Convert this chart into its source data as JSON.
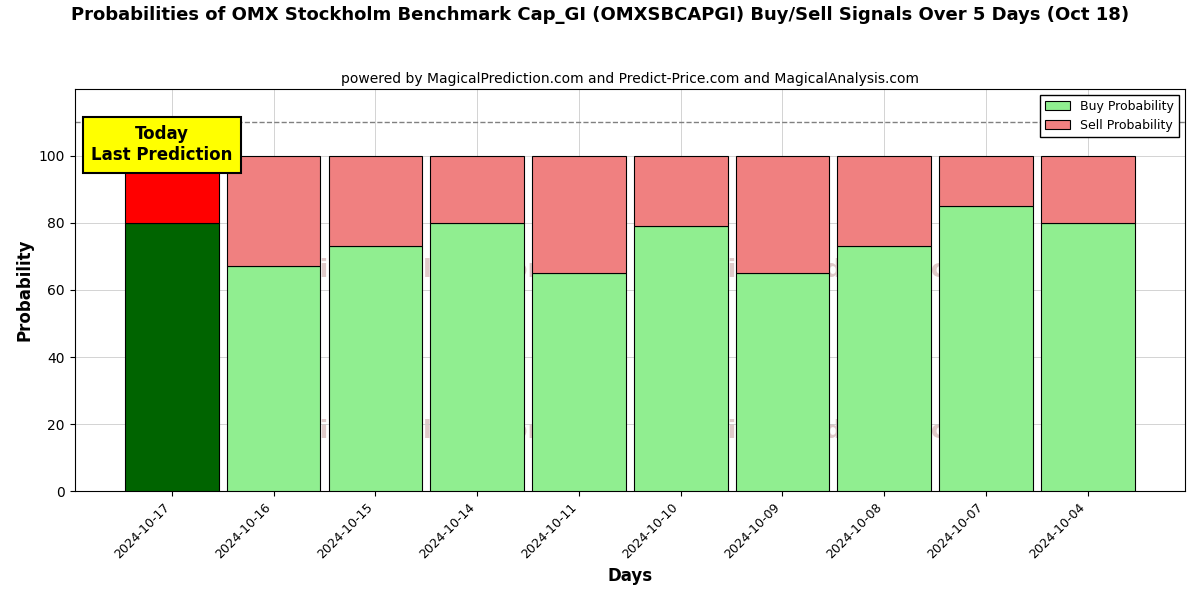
{
  "title": "Probabilities of OMX Stockholm Benchmark Cap_GI (OMXSBCAPGI) Buy/Sell Signals Over 5 Days (Oct 18)",
  "subtitle": "powered by MagicalPrediction.com and Predict-Price.com and MagicalAnalysis.com",
  "xlabel": "Days",
  "ylabel": "Probability",
  "dates": [
    "2024-10-17",
    "2024-10-16",
    "2024-10-15",
    "2024-10-14",
    "2024-10-11",
    "2024-10-10",
    "2024-10-09",
    "2024-10-08",
    "2024-10-07",
    "2024-10-04"
  ],
  "buy_probs": [
    80,
    67,
    73,
    80,
    65,
    79,
    65,
    73,
    85,
    80
  ],
  "sell_probs": [
    20,
    33,
    27,
    20,
    35,
    21,
    35,
    27,
    15,
    20
  ],
  "buy_colors": [
    "#006400",
    "#90EE90",
    "#90EE90",
    "#90EE90",
    "#90EE90",
    "#90EE90",
    "#90EE90",
    "#90EE90",
    "#90EE90",
    "#90EE90"
  ],
  "sell_colors": [
    "#FF0000",
    "#F08080",
    "#F08080",
    "#F08080",
    "#F08080",
    "#F08080",
    "#F08080",
    "#F08080",
    "#F08080",
    "#F08080"
  ],
  "ylim": [
    0,
    120
  ],
  "yticks": [
    0,
    20,
    40,
    60,
    80,
    100
  ],
  "dashed_line_y": 110,
  "today_label": "Today\nLast Prediction",
  "today_box_color": "#FFFF00",
  "legend_buy_color": "#90EE90",
  "legend_sell_color": "#F08080",
  "background_color": "#FFFFFF",
  "grid_color": "#CCCCCC"
}
